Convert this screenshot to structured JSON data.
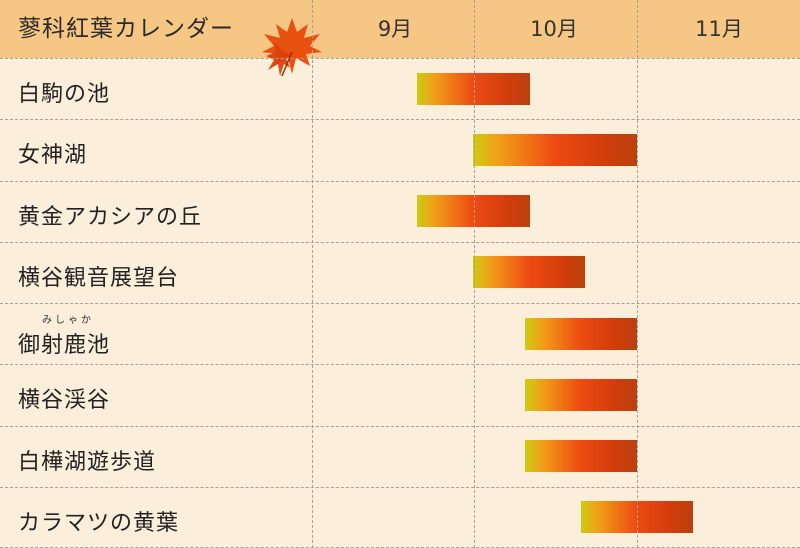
{
  "title": "蓼科紅葉カレンダー",
  "months": [
    "9月",
    "10月",
    "11月"
  ],
  "colors": {
    "header": "#f6c684",
    "background": "#fbeedb",
    "bar_start": "#cdcc10",
    "bar_mid": "#ee4a12",
    "bar_end": "#b8420e"
  },
  "chart_data": {
    "type": "bar",
    "orientation": "horizontal-range",
    "title": "蓼科紅葉カレンダー",
    "x_categories": [
      "9月",
      "10月",
      "11月"
    ],
    "x_unit": "month (fractional position, 9 = start of September)",
    "xlim": [
      8.38,
      11.8
    ],
    "grid": true,
    "rows": [
      {
        "label": "白駒の池",
        "ruby": "",
        "start": 9.8,
        "end": 10.9
      },
      {
        "label": "女神湖",
        "ruby": "",
        "start": 10.3,
        "end": 11.5
      },
      {
        "label": "黄金アカシアの丘",
        "ruby": "",
        "start": 9.8,
        "end": 10.9
      },
      {
        "label": "横谷観音展望台",
        "ruby": "",
        "start": 10.3,
        "end": 11.2
      },
      {
        "label": "御射鹿池",
        "ruby": "みしゃか",
        "start": 10.6,
        "end": 11.5
      },
      {
        "label": "横谷渓谷",
        "ruby": "",
        "start": 10.6,
        "end": 11.5
      },
      {
        "label": "白樺湖遊歩道",
        "ruby": "",
        "start": 10.6,
        "end": 11.5
      },
      {
        "label": "カラマツの黄葉",
        "ruby": "",
        "start": 11.0,
        "end": 11.8
      }
    ]
  }
}
